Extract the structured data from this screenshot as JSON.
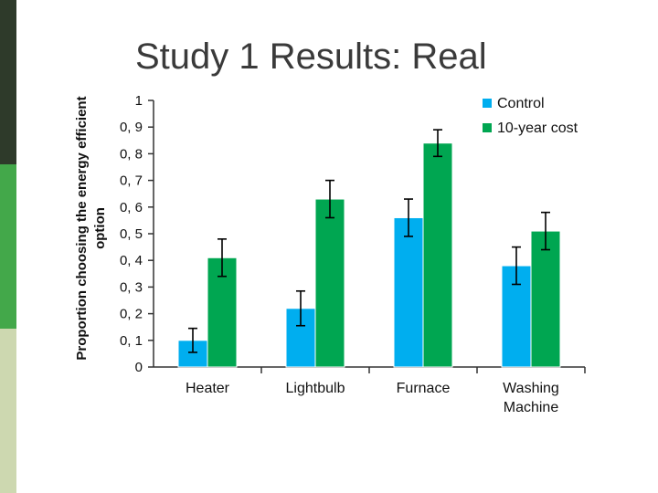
{
  "slide": {
    "title": "Study 1 Results: Real"
  },
  "colors": {
    "control": "#00aeef",
    "cost": "#00a651",
    "axis": "#333333"
  },
  "chart_data": {
    "type": "bar",
    "title": "Study 1 Results: Real",
    "xlabel": "",
    "ylabel": "Proportion choosing the energy efficient option",
    "categories": [
      "Heater",
      "Lightbulb",
      "Furnace",
      "Washing Machine"
    ],
    "series": [
      {
        "name": "Control",
        "values": [
          0.1,
          0.22,
          0.56,
          0.38
        ],
        "error": [
          0.045,
          0.065,
          0.07,
          0.07
        ]
      },
      {
        "name": "10-year cost",
        "values": [
          0.41,
          0.63,
          0.84,
          0.51
        ],
        "error": [
          0.07,
          0.07,
          0.05,
          0.07
        ]
      }
    ],
    "ylim": [
      0,
      1
    ],
    "yticks": [
      0,
      0.1,
      0.2,
      0.3,
      0.4,
      0.5,
      0.6,
      0.7,
      0.8,
      0.9,
      1
    ],
    "ytick_labels": [
      "0",
      "0, 1",
      "0, 2",
      "0, 3",
      "0, 4",
      "0, 5",
      "0, 6",
      "0, 7",
      "0, 8",
      "0, 9",
      "1"
    ],
    "legend": {
      "position": "top-right",
      "entries": [
        "Control",
        "10-year cost"
      ]
    },
    "grid": false
  }
}
